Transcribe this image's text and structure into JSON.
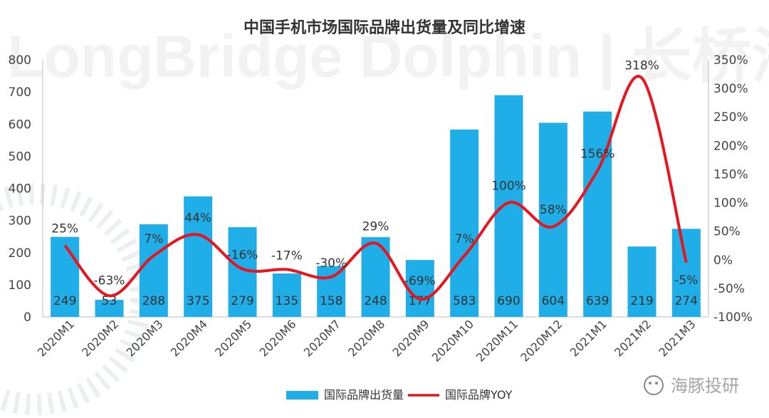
{
  "chart_data": {
    "type": "bar",
    "title": "中国手机市场国际品牌出货量及同比增速",
    "categories": [
      "2020M1",
      "2020M2",
      "2020M3",
      "2020M4",
      "2020M5",
      "2020M6",
      "2020M7",
      "2020M8",
      "2020M9",
      "2020M10",
      "2020M11",
      "2020M12",
      "2021M1",
      "2021M2",
      "2021M3"
    ],
    "series": [
      {
        "name": "国际品牌出货量",
        "kind": "bar",
        "axis": "left",
        "color": "#1faee8",
        "values": [
          249,
          53,
          288,
          375,
          279,
          135,
          158,
          248,
          177,
          583,
          690,
          604,
          639,
          219,
          274
        ],
        "labels": [
          "249",
          "53",
          "288",
          "375",
          "279",
          "135",
          "158",
          "248",
          "177",
          "583",
          "690",
          "604",
          "639",
          "219",
          "274"
        ]
      },
      {
        "name": "国际品牌YOY",
        "kind": "line",
        "axis": "right",
        "color": "#e8141e",
        "values": [
          25,
          -63,
          7,
          44,
          -16,
          -17,
          -30,
          29,
          -69,
          7,
          100,
          58,
          156,
          318,
          -5
        ],
        "labels": [
          "25%",
          "-63%",
          "7%",
          "44%",
          "-16%",
          "-17%",
          "-30%",
          "29%",
          "-69%",
          "7%",
          "100%",
          "58%",
          "156%",
          "318%",
          "-5%"
        ]
      }
    ],
    "y_left": {
      "min": 0,
      "max": 800,
      "ticks": [
        "0",
        "100",
        "200",
        "300",
        "400",
        "500",
        "600",
        "700",
        "800"
      ]
    },
    "y_right": {
      "min": -100,
      "max": 350,
      "ticks": [
        "-100%",
        "-50%",
        "0%",
        "50%",
        "100%",
        "150%",
        "200%",
        "250%",
        "300%",
        "350%"
      ]
    },
    "legend_placement": "bottom",
    "grid": false
  },
  "watermark": {
    "text": "LongBridge Dolphin | 长桥海豚投研",
    "footer": "海豚投研"
  }
}
